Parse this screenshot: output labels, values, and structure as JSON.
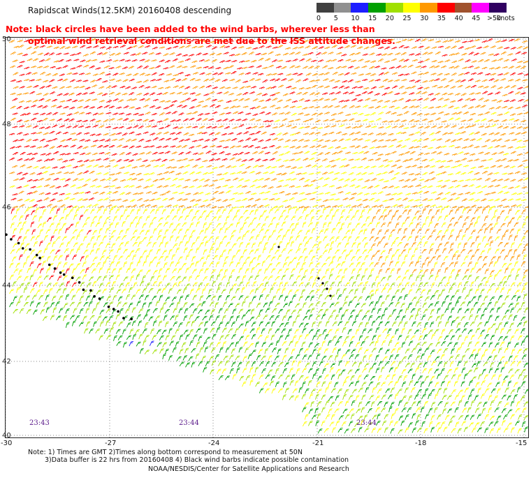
{
  "title": "Rapidscat Winds(12.5KM) 20160408 descending",
  "note": {
    "line1": "Note: black circles have been added to the wind barbs, wherever less than",
    "line2": "optimal wind retrieval conditions are met due to the ISS attitude changes."
  },
  "legend": {
    "unit": "knots",
    "bins": [
      {
        "label": "0",
        "color": "#404040"
      },
      {
        "label": "5",
        "color": "#909090"
      },
      {
        "label": "10",
        "color": "#1e1eff"
      },
      {
        "label": "15",
        "color": "#00a000"
      },
      {
        "label": "20",
        "color": "#a0e000"
      },
      {
        "label": "25",
        "color": "#ffff00"
      },
      {
        "label": "30",
        "color": "#ff9900"
      },
      {
        "label": "35",
        "color": "#ff0000"
      },
      {
        "label": "40",
        "color": "#a0522d"
      },
      {
        "label": "45",
        "color": "#ff00ff"
      },
      {
        "label": ">50",
        "color": "#300060"
      }
    ]
  },
  "map": {
    "lat_labels": [
      "50",
      "48",
      "46",
      "44",
      "42",
      "40"
    ],
    "lon_labels": [
      "-30",
      "-27",
      "-24",
      "-21",
      "-18",
      "-15"
    ],
    "time_labels": [
      "23:43",
      "23:44",
      "23:44"
    ]
  },
  "footer": {
    "note_line1": "Note: 1) Times are GMT 2)Times along bottom correspond to measurement at 50N",
    "note_line2": "3)Data buffer is 22 hrs from 20160408 4) Black wind barbs indicate possible contamination",
    "credit": "NOAA/NESDIS/Center for Satellite Applications and Research"
  }
}
